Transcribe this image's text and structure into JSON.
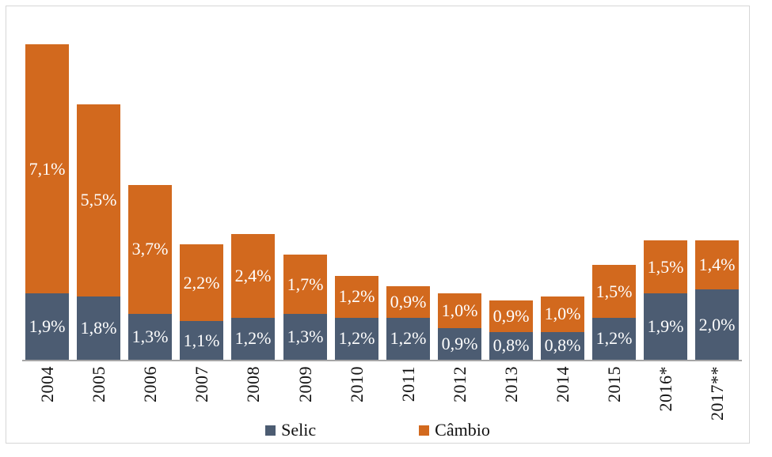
{
  "chart_data": {
    "type": "bar",
    "stacked": true,
    "orientation": "vertical",
    "title": "",
    "xlabel": "",
    "ylabel": "",
    "grid": false,
    "y_axis_visible": false,
    "ylim": [
      0,
      9.2
    ],
    "value_suffix": "%",
    "decimal_separator": ",",
    "legend_position": "bottom",
    "categories": [
      "2004",
      "2005",
      "2006",
      "2007",
      "2008",
      "2009",
      "2010",
      "2011",
      "2012",
      "2013",
      "2014",
      "2015",
      "2016*",
      "2017**"
    ],
    "series": [
      {
        "name": "Selic",
        "color": "#4C5C72",
        "values": [
          1.9,
          1.8,
          1.3,
          1.1,
          1.2,
          1.3,
          1.2,
          1.2,
          0.9,
          0.8,
          0.8,
          1.2,
          1.9,
          2.0
        ],
        "labels": [
          "1,9%",
          "1,8%",
          "1,3%",
          "1,1%",
          "1,2%",
          "1,3%",
          "1,2%",
          "1,2%",
          "0,9%",
          "0,8%",
          "0,8%",
          "1,2%",
          "1,9%",
          "2,0%"
        ]
      },
      {
        "name": "Câmbio",
        "color": "#D2691E",
        "values": [
          7.1,
          5.5,
          3.7,
          2.2,
          2.4,
          1.7,
          1.2,
          0.9,
          1.0,
          0.9,
          1.0,
          1.5,
          1.5,
          1.4
        ],
        "labels": [
          "7,1%",
          "5,5%",
          "3,7%",
          "2,2%",
          "2,4%",
          "1,7%",
          "1,2%",
          "0,9%",
          "1,0%",
          "0,9%",
          "1,0%",
          "1,5%",
          "1,5%",
          "1,4%"
        ]
      }
    ]
  },
  "legend": {
    "items": [
      {
        "label": "Selic",
        "color": "#4C5C72"
      },
      {
        "label": "Câmbio",
        "color": "#D2691E"
      }
    ]
  },
  "colors": {
    "frame_border": "#D6D6D6",
    "axis_line": "#A6A6A6",
    "bar_label_text": "#ffffff",
    "background": "#ffffff"
  }
}
